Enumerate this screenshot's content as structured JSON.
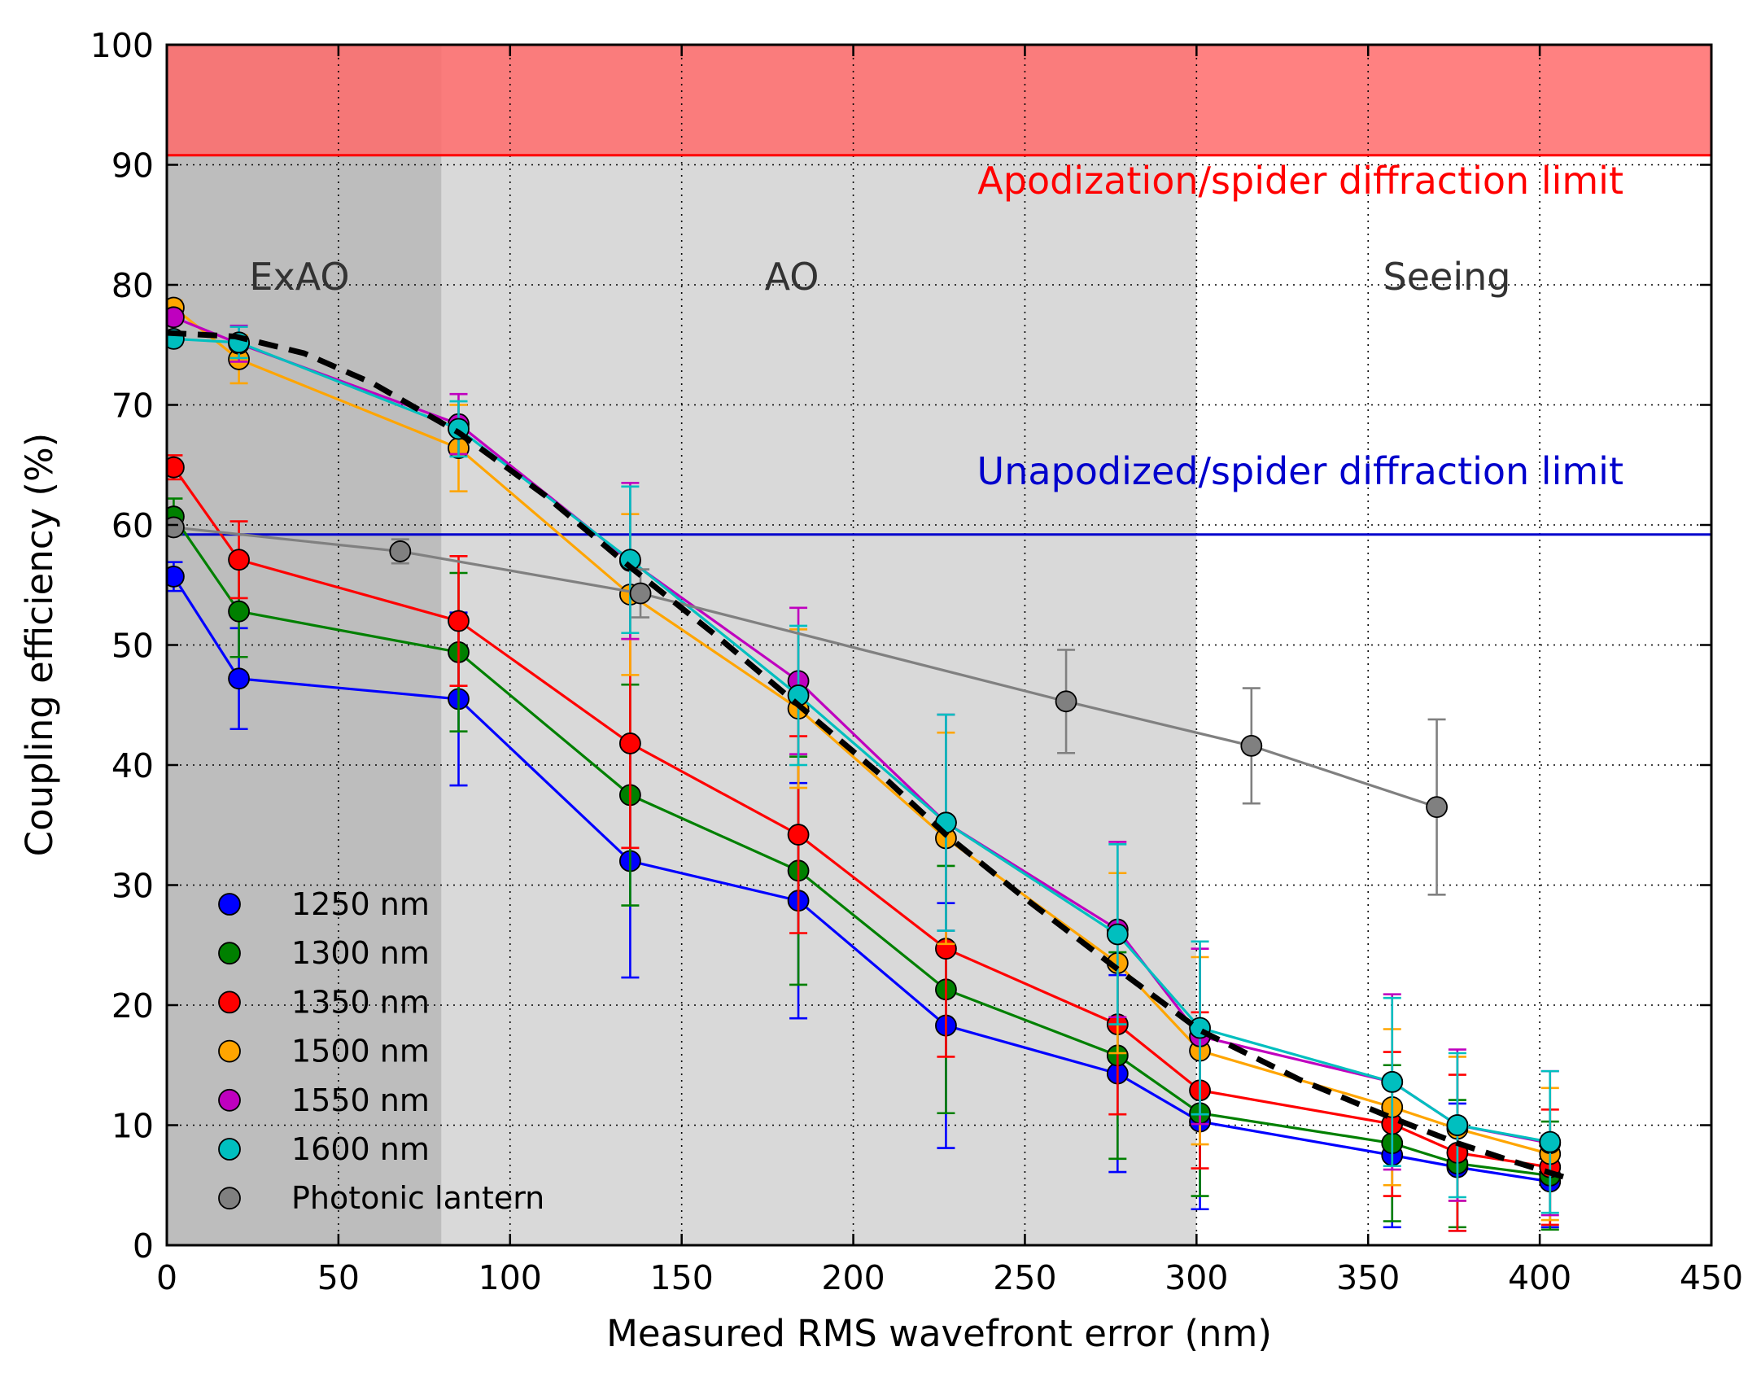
{
  "chart_data": {
    "type": "line",
    "xlabel": "Measured RMS wavefront error (nm)",
    "ylabel": "Coupling efficiency (%)",
    "xlim": [
      0,
      450
    ],
    "ylim": [
      0,
      100
    ],
    "xticks": [
      0,
      50,
      100,
      150,
      200,
      250,
      300,
      350,
      400,
      450
    ],
    "yticks": [
      0,
      10,
      20,
      30,
      40,
      50,
      60,
      70,
      80,
      90,
      100
    ],
    "grid": "dotted",
    "legend_position": "lower-left",
    "regions": [
      {
        "label": "ExAO",
        "x_range": [
          0,
          80
        ],
        "color": "#bdbdbd"
      },
      {
        "label": "AO",
        "x_range": [
          80,
          300
        ],
        "color": "#d9d9d9"
      },
      {
        "label": "Seeing",
        "x_range": [
          300,
          450
        ],
        "color": "#ffffff"
      }
    ],
    "upper_band": {
      "y_range": [
        90.8,
        100
      ],
      "color": "#ff6b6b"
    },
    "hlines": [
      {
        "label": "Apodization/spider diffraction limit",
        "y": 90.8,
        "color": "#ff0000"
      },
      {
        "label": "Unapodized/spider diffraction limit",
        "y": 59.2,
        "color": "#0000cc"
      }
    ],
    "series": [
      {
        "name": "1250 nm",
        "color": "#0000ff",
        "x": [
          2,
          21,
          85,
          135,
          184,
          227,
          277,
          301,
          357,
          376,
          403
        ],
        "y": [
          55.7,
          47.2,
          45.5,
          32.0,
          28.7,
          18.3,
          14.3,
          10.3,
          7.5,
          6.5,
          5.3
        ],
        "err": [
          1.2,
          4.2,
          7.2,
          9.7,
          9.8,
          10.2,
          8.2,
          7.3,
          6.0,
          5.3,
          3.8
        ]
      },
      {
        "name": "1300 nm",
        "color": "#008000",
        "x": [
          2,
          21,
          85,
          135,
          184,
          227,
          277,
          301,
          357,
          376,
          403
        ],
        "y": [
          60.7,
          52.8,
          49.4,
          37.5,
          31.2,
          21.3,
          15.8,
          11.0,
          8.5,
          6.8,
          5.8
        ],
        "err": [
          1.5,
          3.8,
          6.6,
          9.2,
          9.5,
          10.3,
          8.6,
          6.9,
          6.5,
          5.3,
          4.5
        ]
      },
      {
        "name": "1350 nm",
        "color": "#ff0000",
        "x": [
          2,
          21,
          85,
          135,
          184,
          227,
          277,
          301,
          357,
          376,
          403
        ],
        "y": [
          64.8,
          57.1,
          52.0,
          41.8,
          34.2,
          24.7,
          18.4,
          12.9,
          10.1,
          7.7,
          6.5
        ],
        "err": [
          1.0,
          3.2,
          5.4,
          8.7,
          8.2,
          9.0,
          7.5,
          6.5,
          6.0,
          6.5,
          4.8
        ]
      },
      {
        "name": "1500 nm",
        "color": "#ffa500",
        "x": [
          2,
          21,
          85,
          135,
          184,
          227,
          277,
          301,
          357,
          376,
          403
        ],
        "y": [
          78.1,
          73.8,
          66.4,
          54.2,
          44.7,
          33.9,
          23.5,
          16.2,
          11.5,
          9.7,
          7.6
        ],
        "err": [
          0.6,
          2.0,
          3.6,
          6.7,
          6.6,
          8.8,
          7.5,
          7.8,
          6.5,
          6.0,
          5.5
        ]
      },
      {
        "name": "1550 nm",
        "color": "#bf00bf",
        "x": [
          2,
          21,
          85,
          135,
          184,
          227,
          277,
          301,
          357,
          376,
          403
        ],
        "y": [
          77.3,
          75.1,
          68.4,
          57.0,
          47.0,
          35.2,
          26.3,
          17.4,
          13.6,
          10.0,
          8.5
        ],
        "err": [
          0.5,
          1.5,
          2.5,
          6.5,
          6.1,
          9.0,
          7.3,
          7.3,
          7.3,
          6.3,
          6.0
        ]
      },
      {
        "name": "1600 nm",
        "color": "#00bfbf",
        "x": [
          2,
          21,
          85,
          135,
          184,
          227,
          277,
          301,
          357,
          376,
          403
        ],
        "y": [
          75.5,
          75.2,
          68.0,
          57.1,
          45.8,
          35.2,
          25.9,
          18.1,
          13.6,
          10.0,
          8.6
        ],
        "err": [
          0.5,
          1.3,
          2.3,
          6.1,
          5.8,
          9.0,
          7.5,
          7.2,
          7.0,
          6.0,
          5.9
        ]
      },
      {
        "name": "Photonic lantern",
        "color": "#808080",
        "x": [
          2,
          68,
          138,
          262,
          316,
          370
        ],
        "y": [
          59.8,
          57.8,
          54.3,
          45.3,
          41.6,
          36.5
        ],
        "err": [
          0.5,
          1.0,
          2.0,
          4.3,
          4.8,
          7.3
        ]
      }
    ],
    "fit_curve": {
      "style": "dashed",
      "color": "#000000",
      "x": [
        0,
        20,
        40,
        60,
        85,
        110,
        135,
        160,
        184,
        210,
        227,
        250,
        277,
        301,
        330,
        357,
        376,
        392,
        408
      ],
      "y": [
        76.0,
        75.7,
        74.3,
        71.8,
        67.7,
        62.5,
        56.5,
        50.8,
        45.0,
        38.7,
        34.2,
        28.9,
        23.0,
        17.9,
        13.8,
        10.6,
        8.5,
        7.0,
        5.6
      ]
    }
  }
}
